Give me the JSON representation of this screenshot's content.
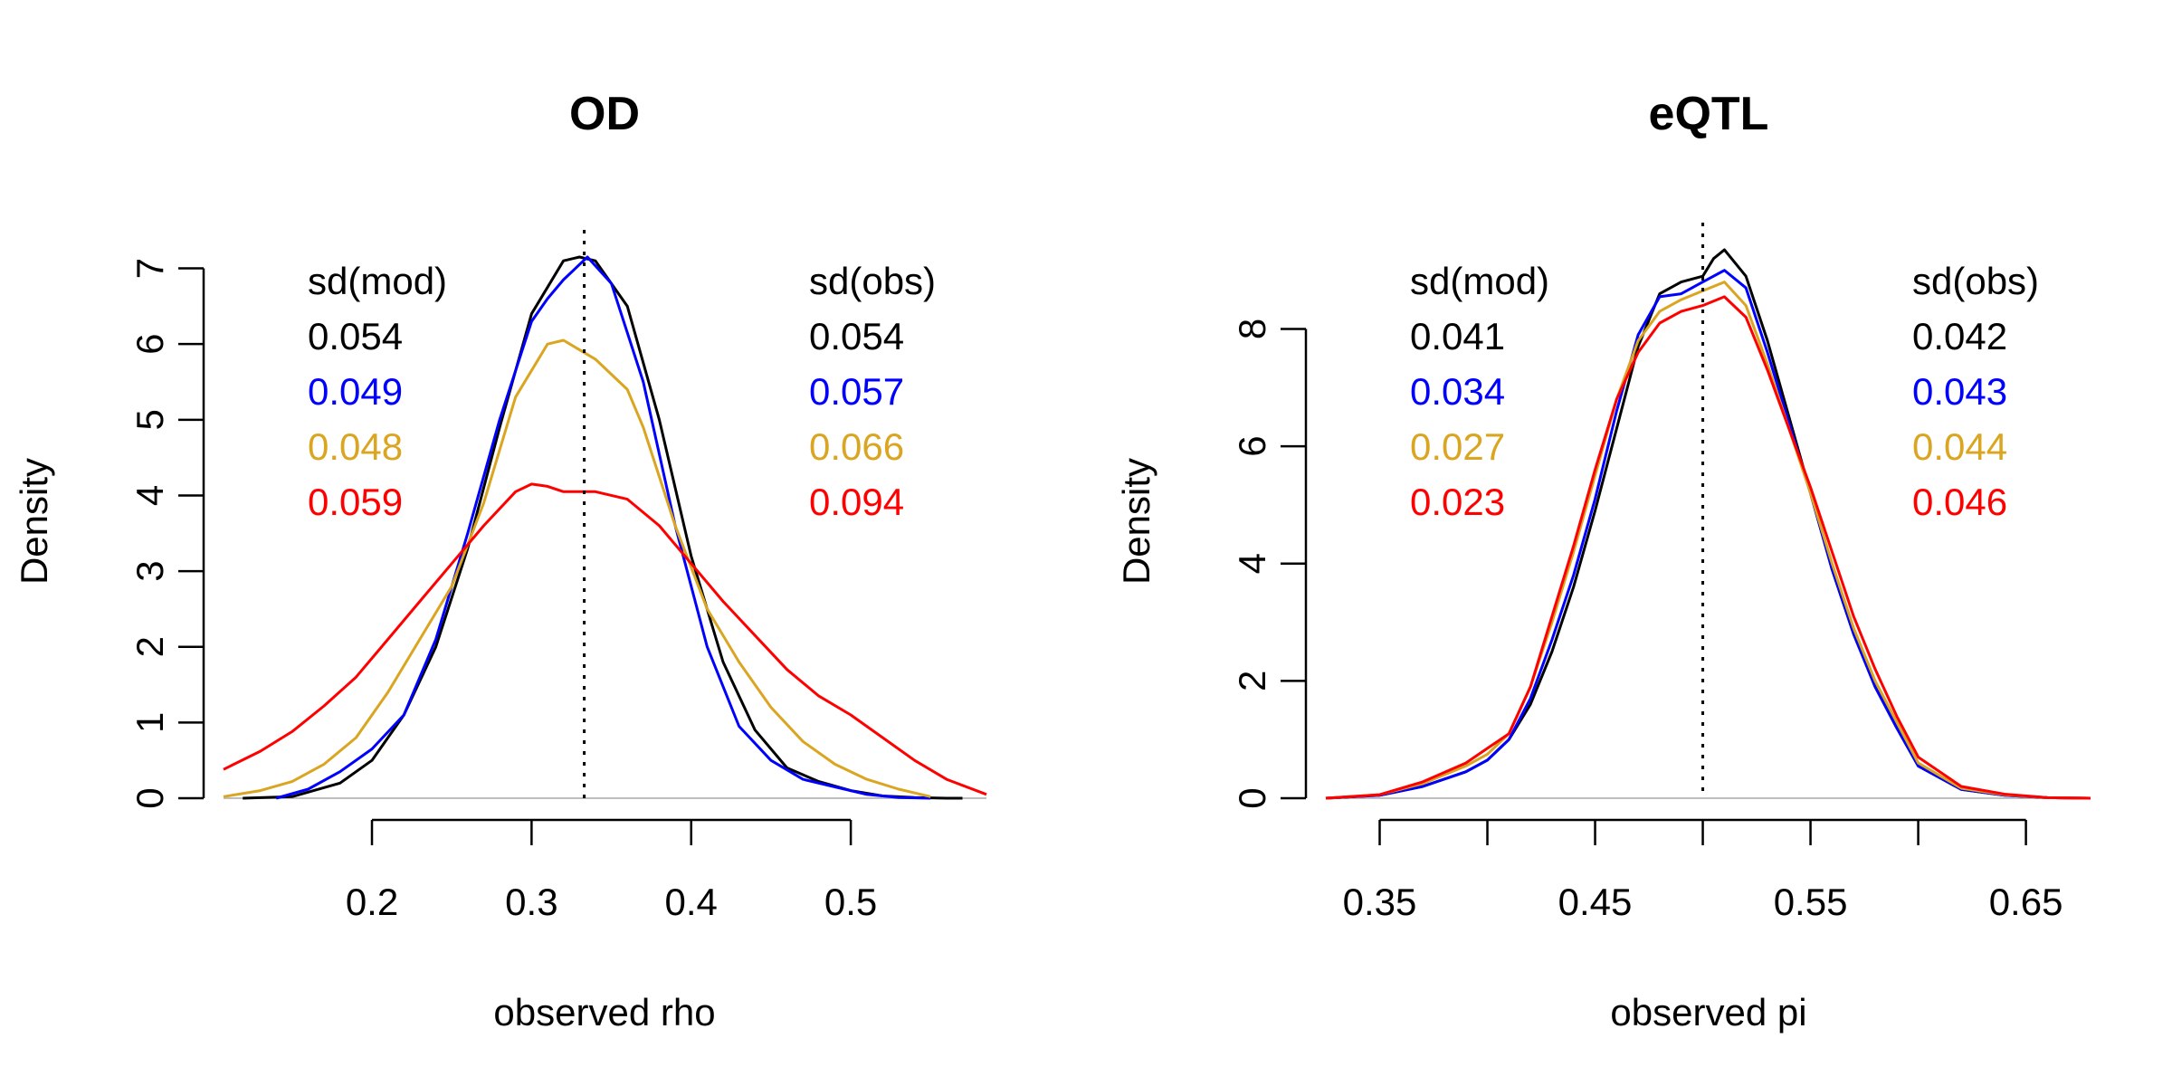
{
  "chart_data": [
    {
      "type": "line",
      "title": "OD",
      "xlabel": "observed rho",
      "ylabel": "Density",
      "xlim": [
        0.107,
        0.585
      ],
      "ylim": [
        0,
        7.15
      ],
      "x_ticks": [
        0.2,
        0.3,
        0.4,
        0.5
      ],
      "x_tick_labels": [
        "0.2",
        "0.3",
        "0.4",
        "0.5"
      ],
      "y_ticks": [
        0,
        1,
        2,
        3,
        4,
        5,
        6,
        7
      ],
      "y_tick_labels": [
        "0",
        "1",
        "2",
        "3",
        "4",
        "5",
        "6",
        "7"
      ],
      "vline": 0.333,
      "grid": false,
      "annotations": {
        "left_header": "sd(mod)",
        "right_header": "sd(obs)",
        "left_values": [
          "0.054",
          "0.049",
          "0.048",
          "0.059"
        ],
        "right_values": [
          "0.054",
          "0.057",
          "0.066",
          "0.094"
        ]
      },
      "series": [
        {
          "color": "#000000",
          "x": [
            0.119,
            0.15,
            0.18,
            0.2,
            0.22,
            0.24,
            0.26,
            0.28,
            0.3,
            0.32,
            0.33,
            0.34,
            0.36,
            0.38,
            0.4,
            0.42,
            0.44,
            0.46,
            0.48,
            0.5,
            0.52,
            0.54,
            0.56,
            0.57
          ],
          "y": [
            0,
            0.02,
            0.2,
            0.5,
            1.1,
            2.0,
            3.3,
            4.9,
            6.4,
            7.1,
            7.15,
            7.1,
            6.5,
            5.0,
            3.2,
            1.8,
            0.9,
            0.4,
            0.22,
            0.1,
            0.03,
            0.01,
            0,
            0
          ]
        },
        {
          "color": "#0000ff",
          "x": [
            0.14,
            0.16,
            0.18,
            0.2,
            0.22,
            0.24,
            0.26,
            0.28,
            0.3,
            0.31,
            0.32,
            0.335,
            0.35,
            0.37,
            0.39,
            0.41,
            0.43,
            0.45,
            0.47,
            0.49,
            0.51,
            0.53,
            0.55
          ],
          "y": [
            0,
            0.12,
            0.35,
            0.65,
            1.1,
            2.1,
            3.5,
            5.0,
            6.3,
            6.6,
            6.85,
            7.15,
            6.8,
            5.5,
            3.6,
            2.0,
            0.95,
            0.5,
            0.25,
            0.15,
            0.05,
            0.01,
            0
          ]
        },
        {
          "color": "#daa520",
          "x": [
            0.107,
            0.13,
            0.15,
            0.17,
            0.19,
            0.21,
            0.23,
            0.25,
            0.27,
            0.29,
            0.31,
            0.32,
            0.34,
            0.36,
            0.37,
            0.39,
            0.41,
            0.43,
            0.45,
            0.47,
            0.49,
            0.51,
            0.53,
            0.55
          ],
          "y": [
            0.02,
            0.1,
            0.22,
            0.45,
            0.8,
            1.4,
            2.1,
            2.8,
            3.9,
            5.3,
            6.0,
            6.05,
            5.8,
            5.4,
            4.9,
            3.6,
            2.5,
            1.8,
            1.2,
            0.75,
            0.45,
            0.25,
            0.12,
            0.02
          ]
        },
        {
          "color": "#ff0000",
          "x": [
            0.107,
            0.13,
            0.15,
            0.17,
            0.19,
            0.21,
            0.23,
            0.25,
            0.27,
            0.29,
            0.3,
            0.31,
            0.32,
            0.34,
            0.36,
            0.38,
            0.4,
            0.42,
            0.44,
            0.46,
            0.48,
            0.5,
            0.52,
            0.54,
            0.56,
            0.585
          ],
          "y": [
            0.38,
            0.62,
            0.88,
            1.22,
            1.6,
            2.1,
            2.6,
            3.1,
            3.6,
            4.05,
            4.15,
            4.12,
            4.05,
            4.05,
            3.95,
            3.6,
            3.1,
            2.6,
            2.15,
            1.7,
            1.35,
            1.1,
            0.8,
            0.5,
            0.25,
            0.05
          ]
        }
      ]
    },
    {
      "type": "line",
      "title": "eQTL",
      "xlabel": "observed pi",
      "ylabel": "Density",
      "xlim": [
        0.325,
        0.68
      ],
      "ylim": [
        0,
        9.35
      ],
      "x_ticks": [
        0.35,
        0.4,
        0.45,
        0.5,
        0.55,
        0.6,
        0.65
      ],
      "x_tick_labels": [
        "0.35",
        "",
        "0.45",
        "",
        "0.55",
        "",
        "0.65"
      ],
      "y_ticks": [
        0,
        2,
        4,
        6,
        8
      ],
      "y_tick_labels": [
        "0",
        "2",
        "4",
        "6",
        "8"
      ],
      "vline": 0.5,
      "grid": false,
      "annotations": {
        "left_header": "sd(mod)",
        "right_header": "sd(obs)",
        "left_values": [
          "0.041",
          "0.034",
          "0.027",
          "0.023"
        ],
        "right_values": [
          "0.042",
          "0.043",
          "0.044",
          "0.046"
        ]
      },
      "series": [
        {
          "color": "#000000",
          "x": [
            0.325,
            0.35,
            0.37,
            0.39,
            0.4,
            0.41,
            0.42,
            0.43,
            0.44,
            0.45,
            0.46,
            0.47,
            0.48,
            0.49,
            0.5,
            0.505,
            0.51,
            0.52,
            0.53,
            0.54,
            0.55,
            0.56,
            0.57,
            0.58,
            0.59,
            0.6,
            0.62,
            0.64,
            0.66,
            0.68
          ],
          "y": [
            0,
            0.05,
            0.2,
            0.45,
            0.65,
            1.0,
            1.6,
            2.5,
            3.6,
            4.9,
            6.3,
            7.7,
            8.6,
            8.8,
            8.9,
            9.2,
            9.35,
            8.9,
            7.8,
            6.5,
            5.2,
            3.9,
            2.8,
            1.9,
            1.2,
            0.55,
            0.15,
            0.05,
            0.01,
            0
          ]
        },
        {
          "color": "#0000ff",
          "x": [
            0.325,
            0.35,
            0.37,
            0.39,
            0.4,
            0.41,
            0.42,
            0.43,
            0.44,
            0.45,
            0.46,
            0.47,
            0.48,
            0.49,
            0.5,
            0.51,
            0.52,
            0.53,
            0.54,
            0.55,
            0.56,
            0.57,
            0.58,
            0.59,
            0.6,
            0.62,
            0.64,
            0.66,
            0.68
          ],
          "y": [
            0,
            0.05,
            0.2,
            0.45,
            0.65,
            1.0,
            1.7,
            2.7,
            3.8,
            5.1,
            6.6,
            7.9,
            8.55,
            8.6,
            8.8,
            9.0,
            8.7,
            7.6,
            6.4,
            5.2,
            3.9,
            2.8,
            1.9,
            1.2,
            0.55,
            0.15,
            0.05,
            0.01,
            0
          ]
        },
        {
          "color": "#daa520",
          "x": [
            0.325,
            0.35,
            0.37,
            0.39,
            0.4,
            0.41,
            0.42,
            0.43,
            0.44,
            0.45,
            0.46,
            0.47,
            0.48,
            0.49,
            0.5,
            0.51,
            0.52,
            0.53,
            0.54,
            0.55,
            0.56,
            0.57,
            0.58,
            0.59,
            0.6,
            0.62,
            0.64,
            0.66,
            0.68
          ],
          "y": [
            0,
            0.06,
            0.25,
            0.55,
            0.75,
            1.1,
            1.9,
            3.0,
            4.2,
            5.5,
            6.8,
            7.8,
            8.3,
            8.5,
            8.65,
            8.8,
            8.4,
            7.4,
            6.3,
            5.2,
            4.0,
            2.9,
            2.0,
            1.3,
            0.6,
            0.17,
            0.06,
            0.01,
            0
          ]
        },
        {
          "color": "#ff0000",
          "x": [
            0.325,
            0.35,
            0.37,
            0.39,
            0.4,
            0.41,
            0.42,
            0.43,
            0.44,
            0.45,
            0.46,
            0.47,
            0.48,
            0.49,
            0.5,
            0.51,
            0.52,
            0.53,
            0.54,
            0.55,
            0.56,
            0.57,
            0.58,
            0.59,
            0.6,
            0.62,
            0.64,
            0.66,
            0.68
          ],
          "y": [
            0,
            0.06,
            0.28,
            0.6,
            0.85,
            1.1,
            1.9,
            3.1,
            4.3,
            5.6,
            6.8,
            7.6,
            8.1,
            8.3,
            8.4,
            8.55,
            8.2,
            7.3,
            6.3,
            5.3,
            4.2,
            3.1,
            2.2,
            1.4,
            0.7,
            0.2,
            0.07,
            0.01,
            0
          ]
        }
      ]
    }
  ]
}
